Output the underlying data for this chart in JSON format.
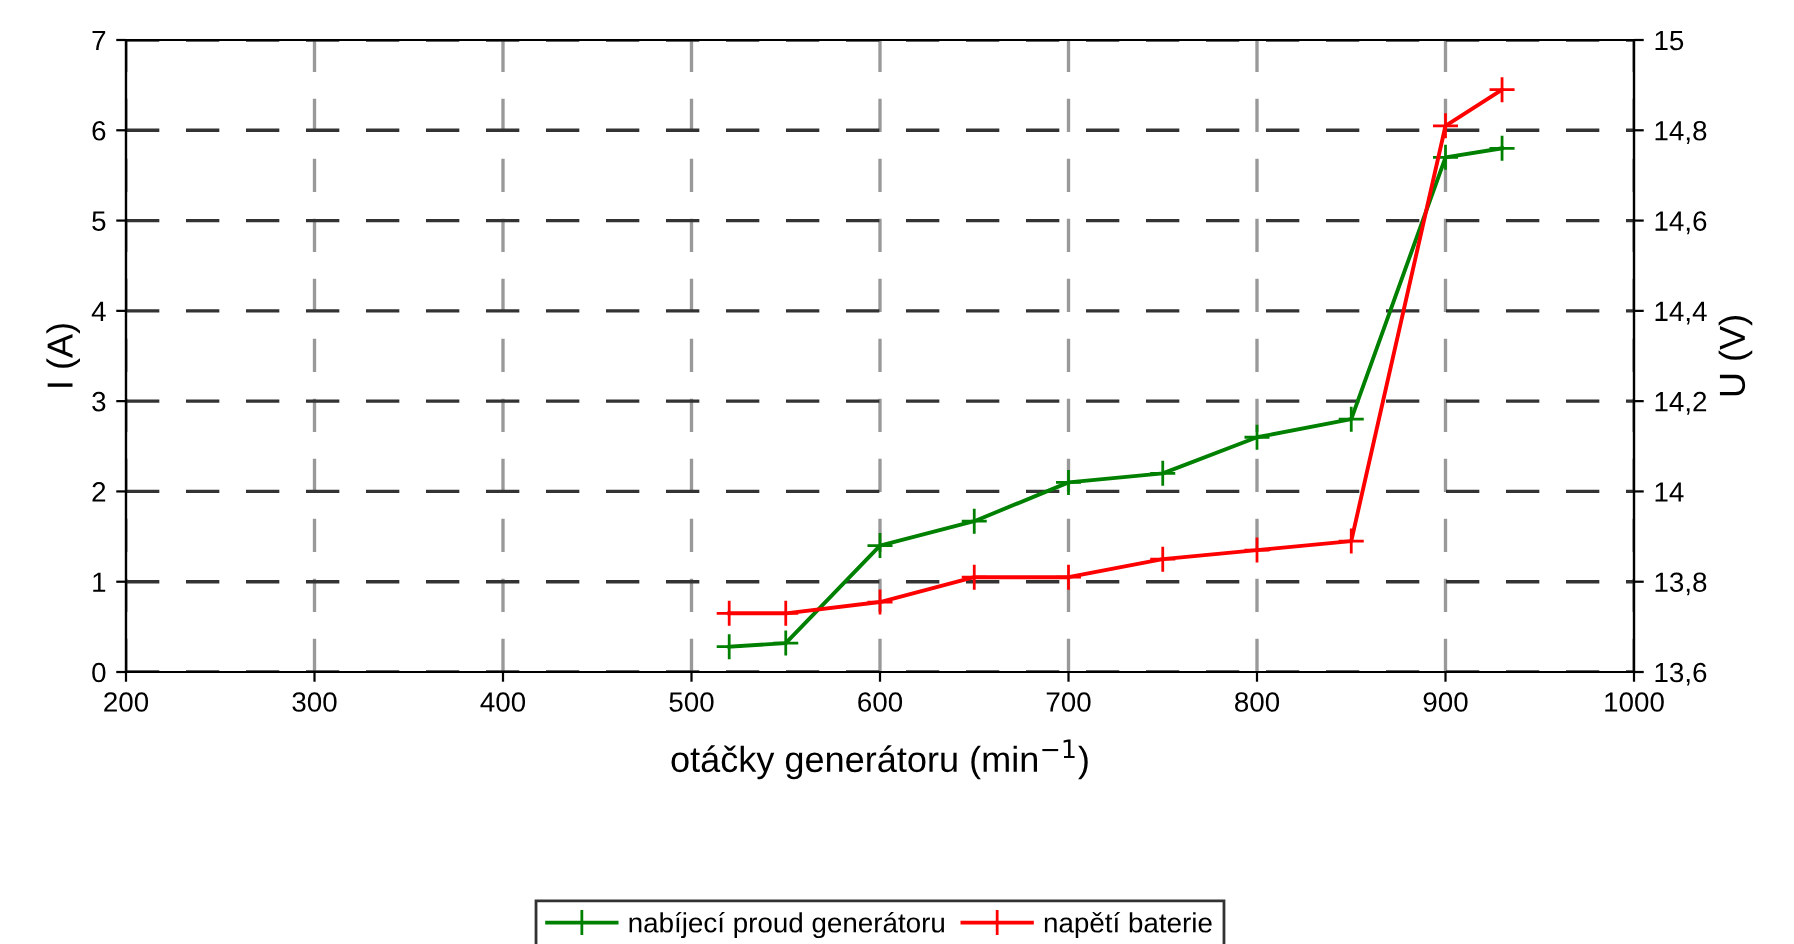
{
  "chart_data": {
    "type": "line",
    "xlabel": "otáčky generátoru (min$^{−1}$)",
    "ylabel": "I (A)",
    "y2label": "U (V)",
    "series": [
      {
        "name": "nabíjecí proud generátoru",
        "color": "#008000",
        "x": [
          520,
          550,
          600,
          650,
          700,
          750,
          800,
          850,
          900,
          930
        ],
        "values": [
          0.28,
          0.32,
          1.4,
          1.67,
          2.1,
          2.2,
          2.6,
          2.8,
          5.7,
          5.8
        ]
      },
      {
        "name": "napětí baterie",
        "color": "#ff0000",
        "axis": "y2",
        "x": [
          520,
          550,
          600,
          650,
          700,
          750,
          800,
          850,
          900,
          930
        ],
        "values": [
          13.73,
          13.73,
          13.755,
          13.81,
          13.81,
          13.85,
          13.87,
          13.89,
          14.81,
          14.89
        ]
      }
    ],
    "xlim": [
      200,
      1000
    ],
    "xticks": [
      200,
      300,
      400,
      500,
      600,
      700,
      800,
      900,
      1000
    ],
    "ylim": [
      0,
      7
    ],
    "yticks": [
      0,
      1,
      2,
      3,
      4,
      5,
      6,
      7
    ],
    "y2lim": [
      13.6,
      15
    ],
    "y2ticks": [
      {
        "value": 13.6,
        "label": "13,6"
      },
      {
        "value": 13.8,
        "label": "13,8"
      },
      {
        "value": 14,
        "label": "14"
      },
      {
        "value": 14.2,
        "label": "14,2"
      },
      {
        "value": 14.4,
        "label": "14,4"
      },
      {
        "value": 14.6,
        "label": "14,6"
      },
      {
        "value": 14.8,
        "label": "14,8"
      },
      {
        "value": 15,
        "label": "15"
      }
    ],
    "grid": true,
    "legend": "bottom",
    "marker": "cross",
    "line_style": "solid"
  }
}
